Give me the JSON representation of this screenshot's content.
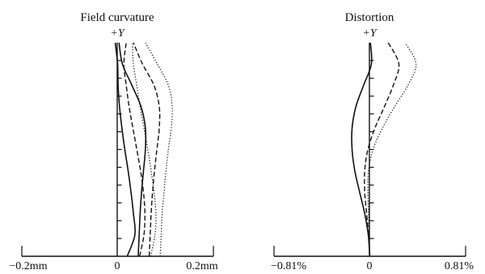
{
  "chart_data": [
    {
      "type": "line",
      "title": "Field curvature",
      "ylabel": "+Y",
      "xlim": [
        -0.2,
        0.2
      ],
      "ylim": [
        0,
        1
      ],
      "xticks": [
        "−0.2mm",
        "0",
        "0.2mm"
      ],
      "y_minor_ticks": 11,
      "series": [
        {
          "style": "solid",
          "x": [
            0.02,
            0.036,
            0.033,
            0.028,
            0.022,
            0.015,
            0.009,
            0.004,
            0.001,
            0.0,
            -0.005
          ],
          "y": [
            0,
            0.1,
            0.2,
            0.3,
            0.4,
            0.5,
            0.6,
            0.7,
            0.8,
            0.9,
            1.0
          ]
        },
        {
          "style": "solid",
          "x": [
            0.043,
            0.045,
            0.047,
            0.05,
            0.054,
            0.058,
            0.058,
            0.049,
            0.03,
            0.01,
            0.003
          ],
          "y": [
            0,
            0.1,
            0.2,
            0.3,
            0.4,
            0.5,
            0.6,
            0.7,
            0.8,
            0.9,
            1.0
          ]
        },
        {
          "style": "dashed",
          "x": [
            0.046,
            0.055,
            0.057,
            0.054,
            0.048,
            0.04,
            0.032,
            0.024,
            0.018,
            0.013,
            0.018
          ],
          "y": [
            0,
            0.1,
            0.2,
            0.3,
            0.4,
            0.5,
            0.6,
            0.7,
            0.8,
            0.9,
            1.0
          ]
        },
        {
          "style": "dashed",
          "x": [
            0.066,
            0.068,
            0.07,
            0.073,
            0.077,
            0.082,
            0.087,
            0.087,
            0.076,
            0.052,
            0.033
          ],
          "y": [
            0,
            0.1,
            0.2,
            0.3,
            0.4,
            0.5,
            0.6,
            0.7,
            0.8,
            0.9,
            1.0
          ]
        },
        {
          "style": "dotted",
          "x": [
            0.069,
            0.078,
            0.08,
            0.076,
            0.07,
            0.063,
            0.055,
            0.047,
            0.04,
            0.033,
            0.031
          ],
          "y": [
            0,
            0.1,
            0.2,
            0.3,
            0.4,
            0.5,
            0.6,
            0.7,
            0.8,
            0.9,
            1.0
          ]
        },
        {
          "style": "dotted",
          "x": [
            0.089,
            0.091,
            0.093,
            0.097,
            0.101,
            0.106,
            0.112,
            0.114,
            0.106,
            0.083,
            0.058
          ],
          "y": [
            0,
            0.1,
            0.2,
            0.3,
            0.4,
            0.5,
            0.6,
            0.7,
            0.8,
            0.9,
            1.0
          ]
        }
      ]
    },
    {
      "type": "line",
      "title": "Distortion",
      "ylabel": "+Y",
      "xlim": [
        -0.81,
        0.81
      ],
      "ylim": [
        0,
        1
      ],
      "xticks": [
        "−0.81%",
        "0",
        "0.81%"
      ],
      "y_minor_ticks": 11,
      "series": [
        {
          "style": "solid",
          "x": [
            0,
            -0.013,
            -0.043,
            -0.086,
            -0.127,
            -0.15,
            -0.15,
            -0.118,
            -0.053,
            0.013,
            0.005
          ],
          "y": [
            0,
            0.1,
            0.2,
            0.3,
            0.4,
            0.5,
            0.6,
            0.7,
            0.8,
            0.9,
            1.0
          ]
        },
        {
          "style": "dashed",
          "x": [
            0,
            -0.011,
            -0.027,
            -0.043,
            -0.043,
            -0.016,
            0.043,
            0.123,
            0.198,
            0.246,
            0.155
          ],
          "y": [
            0,
            0.1,
            0.2,
            0.3,
            0.4,
            0.5,
            0.6,
            0.7,
            0.8,
            0.9,
            1.0
          ]
        },
        {
          "style": "dotted",
          "x": [
            0,
            -0.005,
            -0.011,
            -0.016,
            -0.011,
            0.027,
            0.107,
            0.209,
            0.321,
            0.391,
            0.3
          ],
          "y": [
            0,
            0.1,
            0.2,
            0.3,
            0.4,
            0.5,
            0.6,
            0.7,
            0.8,
            0.9,
            1.0
          ]
        }
      ]
    }
  ]
}
